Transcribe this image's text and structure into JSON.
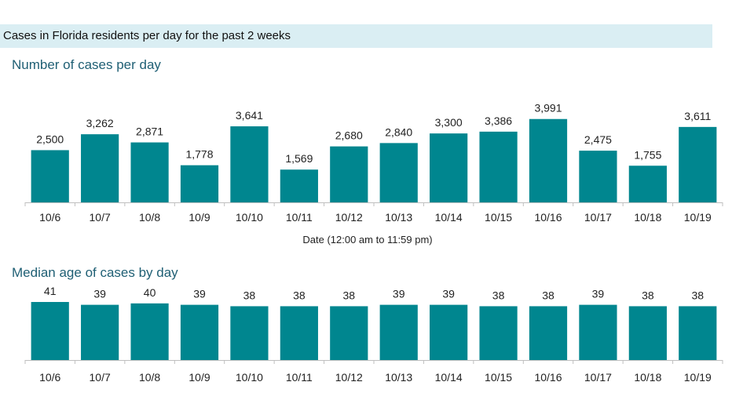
{
  "header": {
    "banner": "Cases in Florida residents per day for the past 2 weeks"
  },
  "chart_data": [
    {
      "type": "bar",
      "title": "Number of cases per day",
      "xlabel": "Date (12:00 am to 11:59 pm)",
      "ylabel": "",
      "categories": [
        "10/6",
        "10/7",
        "10/8",
        "10/9",
        "10/10",
        "10/11",
        "10/12",
        "10/13",
        "10/14",
        "10/15",
        "10/16",
        "10/17",
        "10/18",
        "10/19"
      ],
      "values": [
        2500,
        3262,
        2871,
        1778,
        3641,
        1569,
        2680,
        2840,
        3300,
        3386,
        3991,
        2475,
        1755,
        3611
      ],
      "value_labels": [
        "2,500",
        "3,262",
        "2,871",
        "1,778",
        "3,641",
        "1,569",
        "2,680",
        "2,840",
        "3,300",
        "3,386",
        "3,991",
        "2,475",
        "1,755",
        "3,611"
      ],
      "ylim": [
        0,
        4000
      ],
      "grid": false,
      "bar_color": "#00868f"
    },
    {
      "type": "bar",
      "title": "Median age of cases by day",
      "xlabel": "",
      "ylabel": "",
      "categories": [
        "10/6",
        "10/7",
        "10/8",
        "10/9",
        "10/10",
        "10/11",
        "10/12",
        "10/13",
        "10/14",
        "10/15",
        "10/16",
        "10/17",
        "10/18",
        "10/19"
      ],
      "values": [
        41,
        39,
        40,
        39,
        38,
        38,
        38,
        39,
        39,
        38,
        38,
        39,
        38,
        38
      ],
      "value_labels": [
        "41",
        "39",
        "40",
        "39",
        "38",
        "38",
        "38",
        "39",
        "39",
        "38",
        "38",
        "39",
        "38",
        "38"
      ],
      "ylim": [
        0,
        41
      ],
      "grid": false,
      "bar_color": "#00868f"
    }
  ]
}
